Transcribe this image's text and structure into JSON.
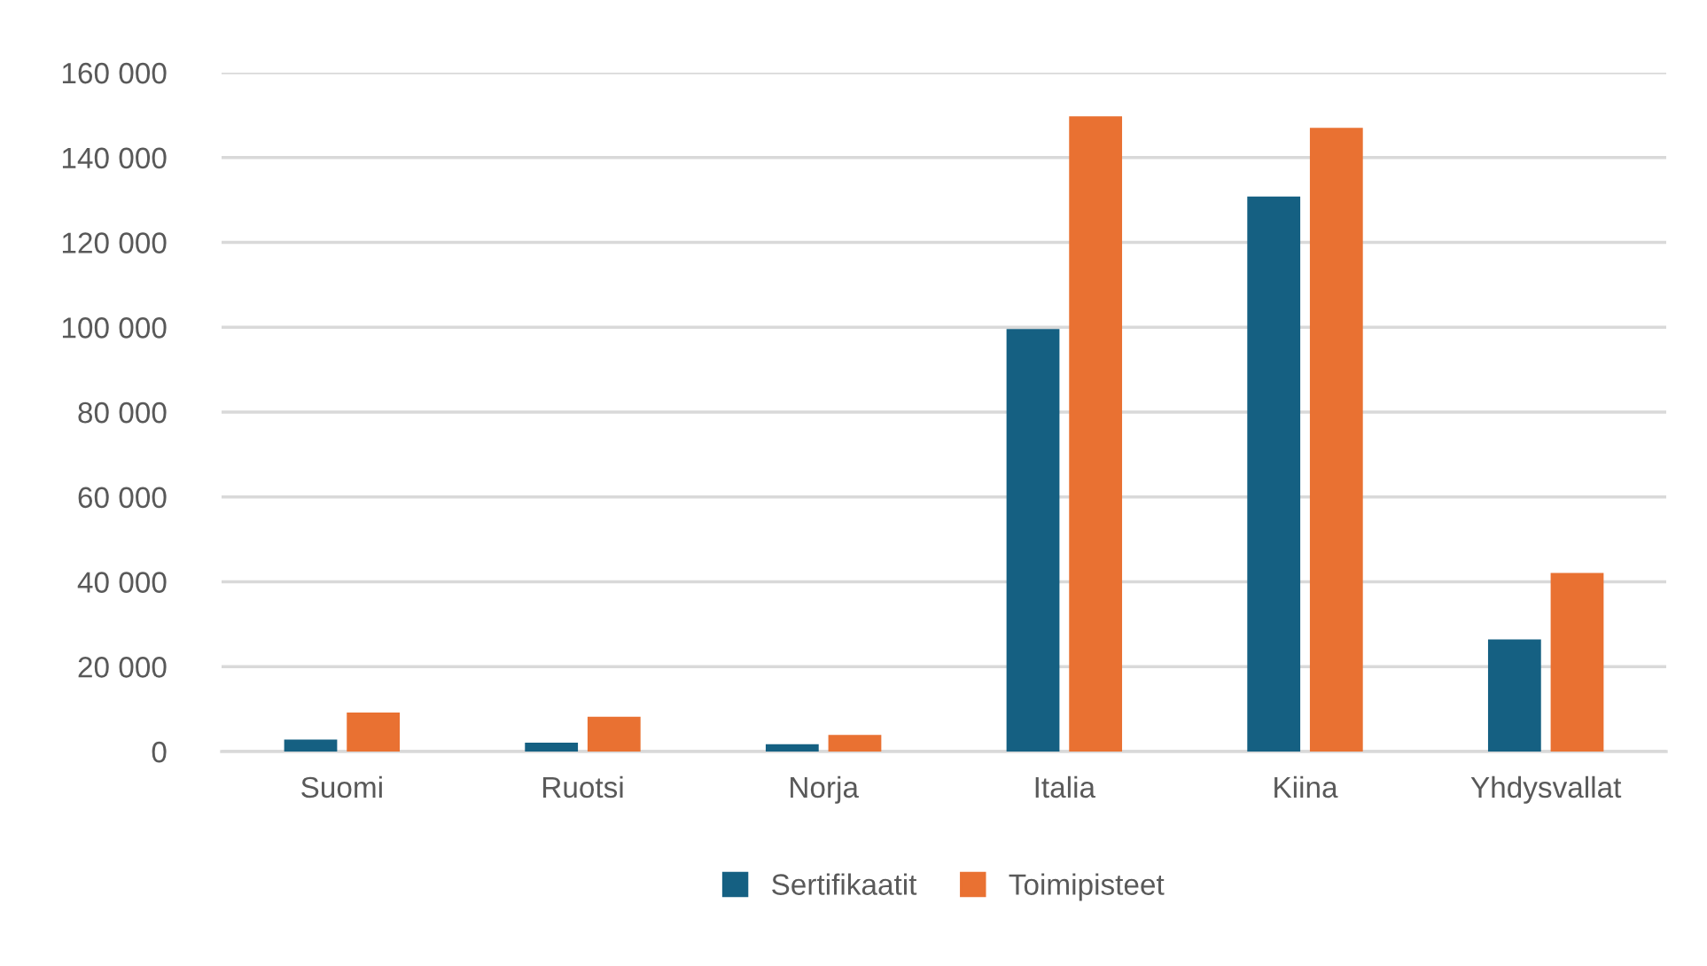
{
  "chart_data": {
    "type": "bar",
    "categories": [
      "Suomi",
      "Ruotsi",
      "Norja",
      "Italia",
      "Kiina",
      "Yhdysvallat"
    ],
    "series": [
      {
        "name": "Sertifikaatit",
        "color": "#156082",
        "values": [
          2800,
          2100,
          1700,
          99600,
          130800,
          26400
        ]
      },
      {
        "name": "Toimipisteet",
        "color": "#e97132",
        "values": [
          9200,
          8200,
          3900,
          149700,
          147000,
          42100
        ]
      }
    ],
    "ylim": [
      0,
      160000
    ],
    "yticks": [
      {
        "value": 0,
        "label": "0"
      },
      {
        "value": 20000,
        "label": "20 000"
      },
      {
        "value": 40000,
        "label": "40 000"
      },
      {
        "value": 60000,
        "label": "60 000"
      },
      {
        "value": 80000,
        "label": "80 000"
      },
      {
        "value": 100000,
        "label": "100 000"
      },
      {
        "value": 120000,
        "label": "120 000"
      },
      {
        "value": 140000,
        "label": "140 000"
      },
      {
        "value": 160000,
        "label": "160 000"
      }
    ],
    "grid": "y",
    "legend": "bottom"
  }
}
